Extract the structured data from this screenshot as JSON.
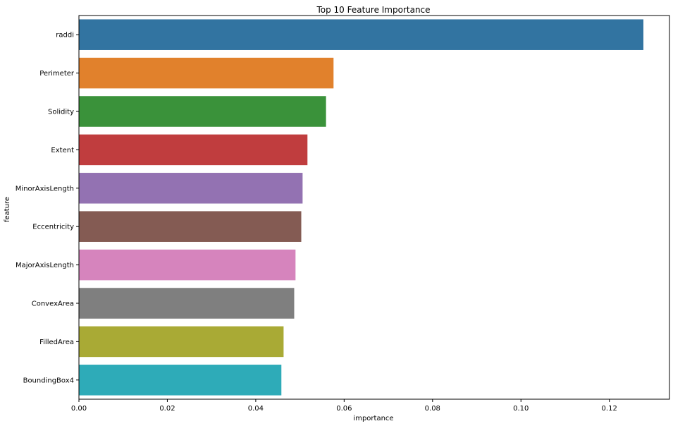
{
  "chart_data": {
    "type": "bar",
    "orientation": "horizontal",
    "title": "Top 10 Feature Importance",
    "xlabel": "importance",
    "ylabel": "feature",
    "xlim": [
      0,
      0.1336
    ],
    "xticks": [
      0.0,
      0.02,
      0.04,
      0.06,
      0.08,
      0.1,
      0.12
    ],
    "xtick_labels": [
      "0.00",
      "0.02",
      "0.04",
      "0.06",
      "0.08",
      "0.10",
      "0.12"
    ],
    "grid": false,
    "legend": "none",
    "categories": [
      "raddi",
      "Perimeter",
      "Solidity",
      "Extent",
      "MinorAxisLength",
      "Eccentricity",
      "MajorAxisLength",
      "ConvexArea",
      "FilledArea",
      "BoundingBox4"
    ],
    "values": [
      0.1277,
      0.0576,
      0.0559,
      0.0517,
      0.0506,
      0.0503,
      0.049,
      0.0487,
      0.0463,
      0.0458
    ],
    "colors": [
      "#3274a1",
      "#e1812c",
      "#3a923a",
      "#c03d3e",
      "#9372b2",
      "#845b53",
      "#d684bd",
      "#7f7f7f",
      "#a9aa35",
      "#2eabb8"
    ]
  }
}
